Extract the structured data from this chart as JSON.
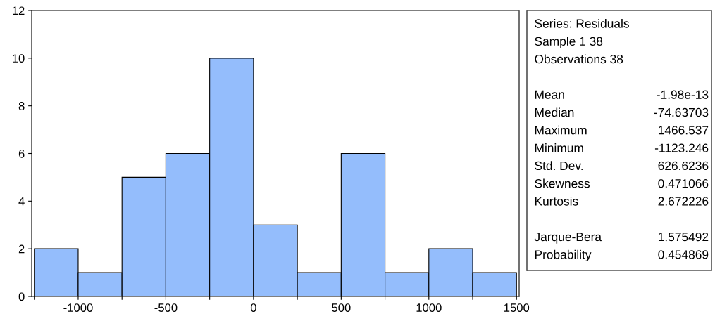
{
  "chart_data": [
    {
      "type": "histogram",
      "bins": [
        -1250,
        -1000,
        -750,
        -500,
        -250,
        0,
        250,
        500,
        750,
        1000,
        1250,
        1500
      ],
      "values": [
        2,
        1,
        5,
        6,
        10,
        3,
        1,
        6,
        1,
        2,
        1
      ],
      "color": "#94bdfc",
      "xlim": [
        -1265,
        1515
      ],
      "xticks": [
        {
          "value": -1250,
          "label": null
        },
        -1000,
        {
          "value": -750,
          "label": null
        },
        -500,
        {
          "value": -250,
          "label": null
        },
        0,
        {
          "value": 250,
          "label": null
        },
        500,
        {
          "value": 750,
          "label": null
        },
        1000,
        {
          "value": 1250,
          "label": null
        },
        1500
      ],
      "ylim": [
        0,
        12
      ],
      "yticks": [
        0,
        2,
        4,
        6,
        8,
        10,
        12
      ],
      "grid": false
    },
    {
      "type": "other",
      "annotations": [
        "Series: Residuals",
        "Sample 1 38",
        "Observations 38",
        "Mean",
        "-1.98e-13",
        "Median",
        "-74.63703",
        "Maximum",
        "1466.537",
        "Minimum",
        "-1123.246",
        "Std. Dev.",
        "626.6236",
        "Skewness",
        "0.471066",
        "Kurtosis",
        "2.672226",
        "Jarque-Bera",
        "1.575492",
        "Probability",
        "0.454869"
      ]
    }
  ]
}
